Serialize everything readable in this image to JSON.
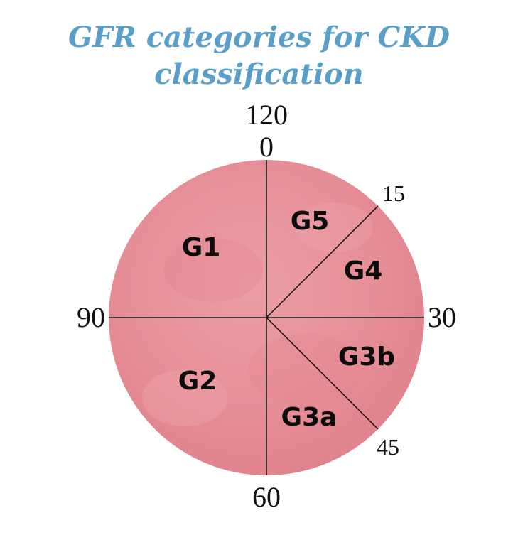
{
  "title": {
    "line1": "GFR categories for CKD",
    "line2": "classification"
  },
  "colors": {
    "title": "#5a9fc8",
    "disc": "#e8929a",
    "disc_edge": "#dc7c86",
    "lines": "#1a1a1a",
    "text": "#111111"
  },
  "scale_labels": {
    "top_outer": "120",
    "top_inner": "0",
    "upper_right": "15",
    "right": "30",
    "lower_right": "45",
    "bottom": "60",
    "left": "90"
  },
  "zones": {
    "g1": "G1",
    "g2": "G2",
    "g3a": "G3a",
    "g3b": "G3b",
    "g4": "G4",
    "g5": "G5"
  }
}
